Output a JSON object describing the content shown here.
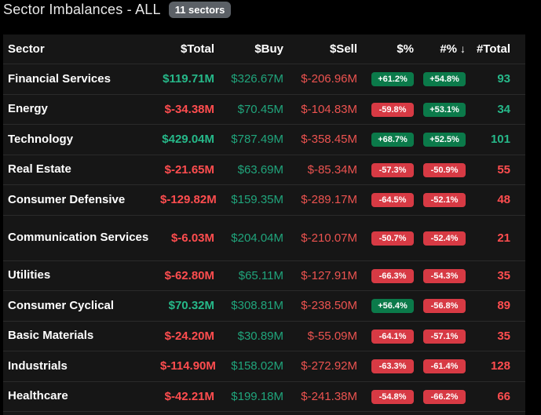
{
  "header": {
    "title": "Sector Imbalances - ALL",
    "badge": "11 sectors"
  },
  "columns": {
    "sector": "Sector",
    "total": "$Total",
    "buy": "$Buy",
    "sell": "$Sell",
    "pct": "$%",
    "count_pct": "#%",
    "count_total": "#Total",
    "sort_icon": "↓"
  },
  "colors": {
    "positive": "#26b889",
    "negative": "#ff4d4f",
    "pill_positive": "#0b7a4a",
    "pill_negative": "#d73a44"
  },
  "rows": [
    {
      "sector": "Financial Services",
      "total": "$119.71M",
      "total_sign": "pos",
      "buy": "$326.67M",
      "sell": "$-206.96M",
      "pct": "+61.2%",
      "pct_sign": "pos",
      "count_pct": "+54.8%",
      "count_pct_sign": "pos",
      "count_total": "93",
      "count_total_sign": "pos"
    },
    {
      "sector": "Energy",
      "total": "$-34.38M",
      "total_sign": "neg",
      "buy": "$70.45M",
      "sell": "$-104.83M",
      "pct": "-59.8%",
      "pct_sign": "neg",
      "count_pct": "+53.1%",
      "count_pct_sign": "pos",
      "count_total": "34",
      "count_total_sign": "pos"
    },
    {
      "sector": "Technology",
      "total": "$429.04M",
      "total_sign": "pos",
      "buy": "$787.49M",
      "sell": "$-358.45M",
      "pct": "+68.7%",
      "pct_sign": "pos",
      "count_pct": "+52.5%",
      "count_pct_sign": "pos",
      "count_total": "101",
      "count_total_sign": "pos"
    },
    {
      "sector": "Real Estate",
      "total": "$-21.65M",
      "total_sign": "neg",
      "buy": "$63.69M",
      "sell": "$-85.34M",
      "pct": "-57.3%",
      "pct_sign": "neg",
      "count_pct": "-50.9%",
      "count_pct_sign": "neg",
      "count_total": "55",
      "count_total_sign": "neg"
    },
    {
      "sector": "Consumer Defensive",
      "total": "$-129.82M",
      "total_sign": "neg",
      "buy": "$159.35M",
      "sell": "$-289.17M",
      "pct": "-64.5%",
      "pct_sign": "neg",
      "count_pct": "-52.1%",
      "count_pct_sign": "neg",
      "count_total": "48",
      "count_total_sign": "neg"
    },
    {
      "sector": "Communication Services",
      "total": "$-6.03M",
      "total_sign": "neg",
      "buy": "$204.04M",
      "sell": "$-210.07M",
      "pct": "-50.7%",
      "pct_sign": "neg",
      "count_pct": "-52.4%",
      "count_pct_sign": "neg",
      "count_total": "21",
      "count_total_sign": "neg"
    },
    {
      "sector": "Utilities",
      "total": "$-62.80M",
      "total_sign": "neg",
      "buy": "$65.11M",
      "sell": "$-127.91M",
      "pct": "-66.3%",
      "pct_sign": "neg",
      "count_pct": "-54.3%",
      "count_pct_sign": "neg",
      "count_total": "35",
      "count_total_sign": "neg"
    },
    {
      "sector": "Consumer Cyclical",
      "total": "$70.32M",
      "total_sign": "pos",
      "buy": "$308.81M",
      "sell": "$-238.50M",
      "pct": "+56.4%",
      "pct_sign": "pos",
      "count_pct": "-56.8%",
      "count_pct_sign": "neg",
      "count_total": "89",
      "count_total_sign": "neg"
    },
    {
      "sector": "Basic Materials",
      "total": "$-24.20M",
      "total_sign": "neg",
      "buy": "$30.89M",
      "sell": "$-55.09M",
      "pct": "-64.1%",
      "pct_sign": "neg",
      "count_pct": "-57.1%",
      "count_pct_sign": "neg",
      "count_total": "35",
      "count_total_sign": "neg"
    },
    {
      "sector": "Industrials",
      "total": "$-114.90M",
      "total_sign": "neg",
      "buy": "$158.02M",
      "sell": "$-272.92M",
      "pct": "-63.3%",
      "pct_sign": "neg",
      "count_pct": "-61.4%",
      "count_pct_sign": "neg",
      "count_total": "128",
      "count_total_sign": "neg"
    },
    {
      "sector": "Healthcare",
      "total": "$-42.21M",
      "total_sign": "neg",
      "buy": "$199.18M",
      "sell": "$-241.38M",
      "pct": "-54.8%",
      "pct_sign": "neg",
      "count_pct": "-66.2%",
      "count_pct_sign": "neg",
      "count_total": "66",
      "count_total_sign": "neg"
    }
  ]
}
